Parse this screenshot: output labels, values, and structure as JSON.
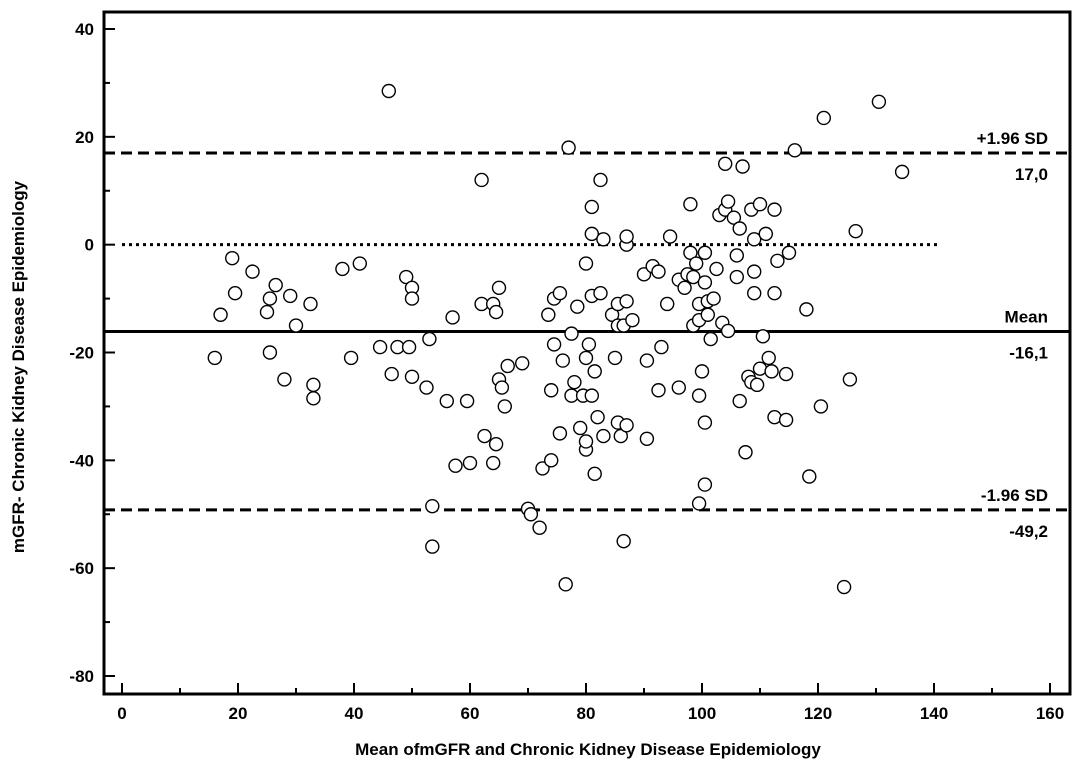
{
  "chart_data": {
    "type": "scatter",
    "title": "",
    "xlabel": "Mean ofmGFR and Chronic Kidney Disease Epidemiology",
    "ylabel": "mGFR- Chronic Kidney Disease Epidemiology",
    "xlim": [
      0,
      160
    ],
    "ylim": [
      -80,
      40
    ],
    "x_ticks": [
      0,
      20,
      40,
      60,
      80,
      100,
      120,
      140,
      160
    ],
    "y_ticks": [
      40,
      20,
      0,
      -20,
      -40,
      -60,
      -80
    ],
    "grid": false,
    "marker": "open-circle",
    "reference_lines": [
      {
        "name": "upper-loa",
        "value": 17.0,
        "style": "dashed",
        "label_above": "+1.96 SD",
        "label_below": "17,0"
      },
      {
        "name": "zero",
        "value": 0,
        "style": "dotted",
        "label_above": "",
        "label_below": ""
      },
      {
        "name": "mean",
        "value": -16.1,
        "style": "solid",
        "label_above": "Mean",
        "label_below": "-16,1"
      },
      {
        "name": "lower-loa",
        "value": -49.2,
        "style": "dashed",
        "label_above": "-1.96 SD",
        "label_below": "-49,2"
      }
    ],
    "points": [
      [
        16,
        -21
      ],
      [
        17,
        -13
      ],
      [
        19,
        -2.5
      ],
      [
        19.5,
        -9
      ],
      [
        22.5,
        -5
      ],
      [
        25,
        -12.5
      ],
      [
        25.5,
        -20
      ],
      [
        25.5,
        -10
      ],
      [
        26.5,
        -7.5
      ],
      [
        28,
        -25
      ],
      [
        29,
        -9.5
      ],
      [
        30,
        -15
      ],
      [
        32.5,
        -11
      ],
      [
        33,
        -26
      ],
      [
        33,
        -28.5
      ],
      [
        38,
        -4.5
      ],
      [
        39.5,
        -21
      ],
      [
        41,
        -3.5
      ],
      [
        44.5,
        -19
      ],
      [
        46,
        28.5
      ],
      [
        46.5,
        -24
      ],
      [
        47.5,
        -19
      ],
      [
        49,
        -6
      ],
      [
        49.5,
        -19
      ],
      [
        50,
        -8
      ],
      [
        50,
        -10
      ],
      [
        50,
        -24.5
      ],
      [
        52.5,
        -26.5
      ],
      [
        53,
        -17.5
      ],
      [
        53.5,
        -48.5
      ],
      [
        53.5,
        -56
      ],
      [
        56,
        -29
      ],
      [
        57,
        -13.5
      ],
      [
        57.5,
        -41
      ],
      [
        59.5,
        -29
      ],
      [
        60,
        -40.5
      ],
      [
        62,
        -11
      ],
      [
        62,
        12
      ],
      [
        62.5,
        -35.5
      ],
      [
        64,
        -11
      ],
      [
        64,
        -40.5
      ],
      [
        64.5,
        -12.5
      ],
      [
        64.5,
        -37
      ],
      [
        65,
        -8
      ],
      [
        65,
        -25
      ],
      [
        65.5,
        -26.5
      ],
      [
        66,
        -30
      ],
      [
        66.5,
        -22.5
      ],
      [
        69,
        -22
      ],
      [
        70,
        -49
      ],
      [
        70.5,
        -50
      ],
      [
        72,
        -52.5
      ],
      [
        72.5,
        -41.5
      ],
      [
        73.5,
        -13
      ],
      [
        74,
        -27
      ],
      [
        74,
        -40
      ],
      [
        74.5,
        -10
      ],
      [
        74.5,
        -18.5
      ],
      [
        75.5,
        -9
      ],
      [
        75.5,
        -35
      ],
      [
        76,
        -21.5
      ],
      [
        76.5,
        -63
      ],
      [
        77,
        18
      ],
      [
        77.5,
        -16.5
      ],
      [
        77.5,
        -28
      ],
      [
        78,
        -25.5
      ],
      [
        78.5,
        -11.5
      ],
      [
        79,
        -34
      ],
      [
        79.5,
        -28
      ],
      [
        80,
        -3.5
      ],
      [
        80,
        -21
      ],
      [
        80,
        -38
      ],
      [
        80,
        -36.5
      ],
      [
        80.5,
        -18.5
      ],
      [
        81,
        7
      ],
      [
        81,
        2
      ],
      [
        81,
        -9.5
      ],
      [
        81,
        -28
      ],
      [
        81.5,
        -23.5
      ],
      [
        81.5,
        -42.5
      ],
      [
        82,
        -32
      ],
      [
        82.5,
        -9
      ],
      [
        82.5,
        12
      ],
      [
        83,
        -35.5
      ],
      [
        83,
        1
      ],
      [
        84.5,
        -13
      ],
      [
        85,
        -21
      ],
      [
        85.5,
        -11
      ],
      [
        85.5,
        -15
      ],
      [
        85.5,
        -33
      ],
      [
        86,
        -35.5
      ],
      [
        86.5,
        -55
      ],
      [
        86.5,
        -15
      ],
      [
        87,
        0
      ],
      [
        87,
        1.5
      ],
      [
        87,
        -10.5
      ],
      [
        87,
        -33.5
      ],
      [
        88,
        -14
      ],
      [
        90,
        -5.5
      ],
      [
        90.5,
        -21.5
      ],
      [
        90.5,
        -36
      ],
      [
        91.5,
        -4
      ],
      [
        92.5,
        -5
      ],
      [
        92.5,
        -27
      ],
      [
        93,
        -19
      ],
      [
        94,
        -11
      ],
      [
        94.5,
        1.5
      ],
      [
        96,
        -6.5
      ],
      [
        96,
        -26.5
      ],
      [
        97,
        -8
      ],
      [
        97.5,
        -5.5
      ],
      [
        98,
        -1.5
      ],
      [
        98,
        7.5
      ],
      [
        98.5,
        -6
      ],
      [
        98.5,
        -15
      ],
      [
        99,
        -3.5
      ],
      [
        99.5,
        -11
      ],
      [
        99.5,
        -14
      ],
      [
        99.5,
        -28
      ],
      [
        99.5,
        -48
      ],
      [
        100,
        -23.5
      ],
      [
        100.5,
        -44.5
      ],
      [
        100.5,
        -33
      ],
      [
        100.5,
        -7
      ],
      [
        100.5,
        -1.5
      ],
      [
        101,
        -10.5
      ],
      [
        101,
        -13
      ],
      [
        101.5,
        -17.5
      ],
      [
        102,
        -10
      ],
      [
        102.5,
        -4.5
      ],
      [
        103,
        5.5
      ],
      [
        103.5,
        -14.5
      ],
      [
        104,
        15
      ],
      [
        104,
        6.5
      ],
      [
        104.5,
        8
      ],
      [
        104.5,
        -16
      ],
      [
        105.5,
        5
      ],
      [
        106,
        -2
      ],
      [
        106,
        -6
      ],
      [
        106.5,
        3
      ],
      [
        106.5,
        -29
      ],
      [
        107,
        14.5
      ],
      [
        107.5,
        -38.5
      ],
      [
        108,
        -24.5
      ],
      [
        108.5,
        6.5
      ],
      [
        108.5,
        -25.5
      ],
      [
        109,
        1
      ],
      [
        109,
        -5
      ],
      [
        109,
        -9
      ],
      [
        109.5,
        -26
      ],
      [
        110,
        7.5
      ],
      [
        110,
        -23
      ],
      [
        110.5,
        -17
      ],
      [
        111,
        2
      ],
      [
        111.5,
        -21
      ],
      [
        112,
        -23.5
      ],
      [
        112.5,
        6.5
      ],
      [
        112.5,
        -9
      ],
      [
        112.5,
        -32
      ],
      [
        113,
        -3
      ],
      [
        114.5,
        -32.5
      ],
      [
        114.5,
        -24
      ],
      [
        115,
        -1.5
      ],
      [
        116,
        17.5
      ],
      [
        118,
        -12
      ],
      [
        118.5,
        -43
      ],
      [
        120.5,
        -30
      ],
      [
        121,
        23.5
      ],
      [
        124.5,
        -63.5
      ],
      [
        125.5,
        -25
      ],
      [
        126.5,
        2.5
      ],
      [
        130.5,
        26.5
      ],
      [
        134.5,
        13.5
      ]
    ]
  }
}
